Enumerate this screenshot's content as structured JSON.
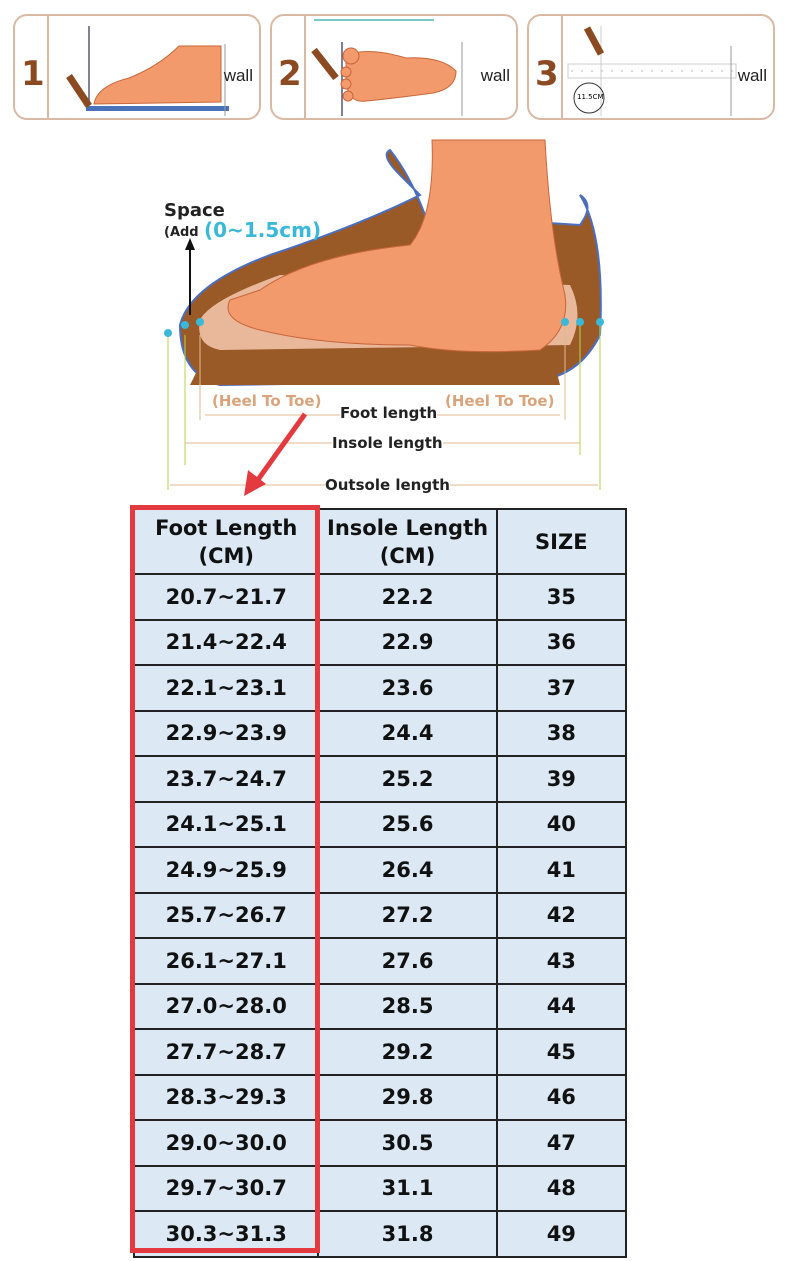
{
  "steps": [
    {
      "number": "1",
      "wall": "wall"
    },
    {
      "number": "2",
      "wall": "wall"
    },
    {
      "number": "3",
      "wall": "wall",
      "ruler_reading": "11.5CM"
    }
  ],
  "diagram": {
    "space": "Space",
    "add": "(Add",
    "add_value": "(0~1.5cm)",
    "heel_to_toe_left": "(Heel To Toe)",
    "heel_to_toe_right": "(Heel To Toe)",
    "foot_length": "Foot length",
    "insole_length": "Insole length",
    "outsole_length": "Outsole length"
  },
  "colors": {
    "highlight": "#e23a3e",
    "cell": "#dce9f5",
    "skin": "#f29a6c",
    "sole": "#9a5a28"
  },
  "table": {
    "headers": [
      "Foot Length (CM)",
      "Insole Length (CM)",
      "SIZE"
    ],
    "rows": [
      [
        "20.7~21.7",
        "22.2",
        "35"
      ],
      [
        "21.4~22.4",
        "22.9",
        "36"
      ],
      [
        "22.1~23.1",
        "23.6",
        "37"
      ],
      [
        "22.9~23.9",
        "24.4",
        "38"
      ],
      [
        "23.7~24.7",
        "25.2",
        "39"
      ],
      [
        "24.1~25.1",
        "25.6",
        "40"
      ],
      [
        "24.9~25.9",
        "26.4",
        "41"
      ],
      [
        "25.7~26.7",
        "27.2",
        "42"
      ],
      [
        "26.1~27.1",
        "27.6",
        "43"
      ],
      [
        "27.0~28.0",
        "28.5",
        "44"
      ],
      [
        "27.7~28.7",
        "29.2",
        "45"
      ],
      [
        "28.3~29.3",
        "29.8",
        "46"
      ],
      [
        "29.0~30.0",
        "30.5",
        "47"
      ],
      [
        "29.7~30.7",
        "31.1",
        "48"
      ],
      [
        "30.3~31.3",
        "31.8",
        "49"
      ]
    ]
  }
}
